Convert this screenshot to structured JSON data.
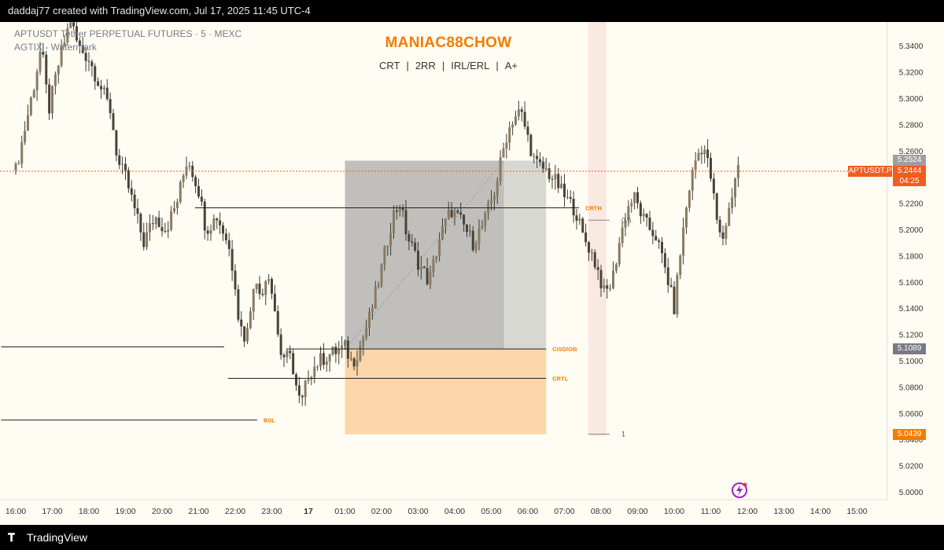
{
  "header": {
    "credit": "daddaj77 created with TradingView.com, Jul 17, 2025 11:45 UTC-4"
  },
  "legend": {
    "symbol_line": "APTUSDT Tether PERPETUAL FUTURES · 5 · MEXC",
    "watermark_line": "AGTIX - Watermark"
  },
  "headline": {
    "title": "MANIAC88CHOW",
    "tags": [
      "CRT",
      "2RR",
      "IRL/ERL",
      "A+"
    ]
  },
  "footer": {
    "brand": "TradingView"
  },
  "badges": {
    "symbol": "APTUSDT.P",
    "timer": "04:25",
    "prices": [
      {
        "label": "5.2524",
        "value": 5.2524,
        "color": "#9e9e9e"
      },
      {
        "label": "5.2444",
        "value": 5.2444,
        "color": "#f05d1f"
      },
      {
        "label": "5.1089",
        "value": 5.1089,
        "color": "#787b86"
      },
      {
        "label": "5.0439",
        "value": 5.0439,
        "color": "#f57c00"
      }
    ]
  },
  "colors": {
    "background": "#fffdf3",
    "candle_body": "#7a6a55",
    "wick": "#3a3a3a",
    "accent": "#f57c00",
    "current_price_line": "#f05d1f"
  },
  "chart_data": {
    "type": "candlestick",
    "title": "",
    "symbol": "APTUSDT",
    "timeframe": "5",
    "exchange": "MEXC",
    "ylim": [
      4.98,
      5.36
    ],
    "x_tick_labels": [
      "16:00",
      "17:00",
      "18:00",
      "19:00",
      "20:00",
      "21:00",
      "22:00",
      "23:00",
      "17",
      "01:00",
      "02:00",
      "03:00",
      "04:00",
      "05:00",
      "06:00",
      "07:00",
      "08:00",
      "09:00",
      "10:00",
      "11:00",
      "12:00",
      "13:00",
      "14:00",
      "15:00"
    ],
    "x_ticks_hours": [
      -8,
      -7,
      -6,
      -5,
      -4,
      -3,
      -2,
      -1,
      0,
      1,
      2,
      3,
      4,
      5,
      6,
      7,
      8,
      9,
      10,
      11,
      12,
      13,
      14,
      15
    ],
    "y_ticks": [
      5.0,
      5.02,
      5.04,
      5.06,
      5.08,
      5.1,
      5.12,
      5.14,
      5.16,
      5.18,
      5.2,
      5.22,
      5.24,
      5.26,
      5.28,
      5.3,
      5.32,
      5.34
    ],
    "y_tick_labels": [
      "5.0000",
      "5.0200",
      "5.0400",
      "5.0600",
      "5.0800",
      "5.1000",
      "5.1200",
      "5.1400",
      "5.1600",
      "5.1800",
      "5.2000",
      "5.2200",
      "5.2400",
      "5.2600",
      "5.2800",
      "5.3000",
      "5.3200",
      "5.3400"
    ],
    "current_price": 5.2444,
    "waypoints": [
      [
        -8.0,
        5.245
      ],
      [
        -7.8,
        5.27
      ],
      [
        -7.5,
        5.31
      ],
      [
        -7.3,
        5.34
      ],
      [
        -7.1,
        5.29
      ],
      [
        -6.8,
        5.33
      ],
      [
        -6.5,
        5.36
      ],
      [
        -6.3,
        5.34
      ],
      [
        -6.0,
        5.33
      ],
      [
        -5.7,
        5.31
      ],
      [
        -5.4,
        5.29
      ],
      [
        -5.2,
        5.25
      ],
      [
        -5.0,
        5.24
      ],
      [
        -4.8,
        5.22
      ],
      [
        -4.5,
        5.19
      ],
      [
        -4.2,
        5.21
      ],
      [
        -3.9,
        5.2
      ],
      [
        -3.6,
        5.22
      ],
      [
        -3.3,
        5.255
      ],
      [
        -3.0,
        5.23
      ],
      [
        -2.8,
        5.2
      ],
      [
        -2.5,
        5.21
      ],
      [
        -2.2,
        5.19
      ],
      [
        -2.0,
        5.16
      ],
      [
        -1.9,
        5.13
      ],
      [
        -1.7,
        5.115
      ],
      [
        -1.5,
        5.16
      ],
      [
        -1.3,
        5.15
      ],
      [
        -1.1,
        5.17
      ],
      [
        -0.9,
        5.135
      ],
      [
        -0.7,
        5.095
      ],
      [
        -0.5,
        5.11
      ],
      [
        -0.4,
        5.085
      ],
      [
        -0.2,
        5.065
      ],
      [
        0.0,
        5.09
      ],
      [
        0.3,
        5.1
      ],
      [
        0.6,
        5.105
      ],
      [
        1.0,
        5.11
      ],
      [
        1.2,
        5.098
      ],
      [
        1.4,
        5.11
      ],
      [
        1.7,
        5.135
      ],
      [
        2.0,
        5.17
      ],
      [
        2.3,
        5.21
      ],
      [
        2.5,
        5.22
      ],
      [
        2.7,
        5.195
      ],
      [
        3.0,
        5.175
      ],
      [
        3.3,
        5.16
      ],
      [
        3.6,
        5.195
      ],
      [
        3.9,
        5.215
      ],
      [
        4.2,
        5.205
      ],
      [
        4.5,
        5.19
      ],
      [
        4.8,
        5.205
      ],
      [
        5.1,
        5.23
      ],
      [
        5.4,
        5.27
      ],
      [
        5.6,
        5.285
      ],
      [
        5.8,
        5.29
      ],
      [
        6.0,
        5.27
      ],
      [
        6.2,
        5.25
      ],
      [
        6.5,
        5.245
      ],
      [
        6.8,
        5.235
      ],
      [
        7.0,
        5.225
      ],
      [
        7.3,
        5.215
      ],
      [
        7.5,
        5.195
      ],
      [
        7.7,
        5.185
      ],
      [
        7.9,
        5.17
      ],
      [
        8.1,
        5.15
      ],
      [
        8.3,
        5.16
      ],
      [
        8.5,
        5.19
      ],
      [
        8.7,
        5.215
      ],
      [
        8.9,
        5.225
      ],
      [
        9.2,
        5.205
      ],
      [
        9.5,
        5.195
      ],
      [
        9.8,
        5.165
      ],
      [
        10.0,
        5.14
      ],
      [
        10.2,
        5.19
      ],
      [
        10.4,
        5.23
      ],
      [
        10.6,
        5.255
      ],
      [
        10.8,
        5.265
      ],
      [
        11.0,
        5.24
      ],
      [
        11.2,
        5.2
      ],
      [
        11.3,
        5.19
      ],
      [
        11.5,
        5.215
      ],
      [
        11.7,
        5.245
      ],
      [
        11.8,
        5.25
      ]
    ],
    "levels": [
      {
        "name": "BSL",
        "label": "BSL",
        "price": 5.0547,
        "x_from": -8.4,
        "x_to": -1.4,
        "label_color": "#f57c00"
      },
      {
        "name": "CRTL",
        "label": "CRTL",
        "price": 5.0865,
        "x_from": -2.2,
        "x_to": 6.5,
        "label_color": "#f57c00"
      },
      {
        "name": "CISD/OB",
        "label": "CISD/OB",
        "price": 5.1089,
        "x_from": -0.6,
        "x_to": 6.5,
        "label_color": "#f57c00"
      },
      {
        "name": "CRTH",
        "label": "CRTH",
        "price": 5.2165,
        "x_from": -3.1,
        "x_to": 7.4,
        "label_color": "#f57c00"
      },
      {
        "name": "left-swing-level",
        "label": "",
        "price": 5.1105,
        "x_from": -8.4,
        "x_to": -2.3,
        "label_color": ""
      }
    ],
    "fib_labels": [
      {
        "label": "0.5",
        "price": 5.207,
        "x": 8.3
      },
      {
        "label": "1",
        "price": 5.044,
        "x": 8.3
      }
    ],
    "position": {
      "entry": 5.1089,
      "target": 5.2524,
      "stop": 5.0439,
      "x_from": 1.0,
      "x_split": 5.35,
      "x_to": 6.5
    },
    "vertical_band": {
      "x_from": 7.65,
      "x_to": 8.15
    },
    "trend_line": {
      "from": [
        1.0,
        5.1089
      ],
      "to": [
        5.35,
        5.2524
      ]
    }
  }
}
